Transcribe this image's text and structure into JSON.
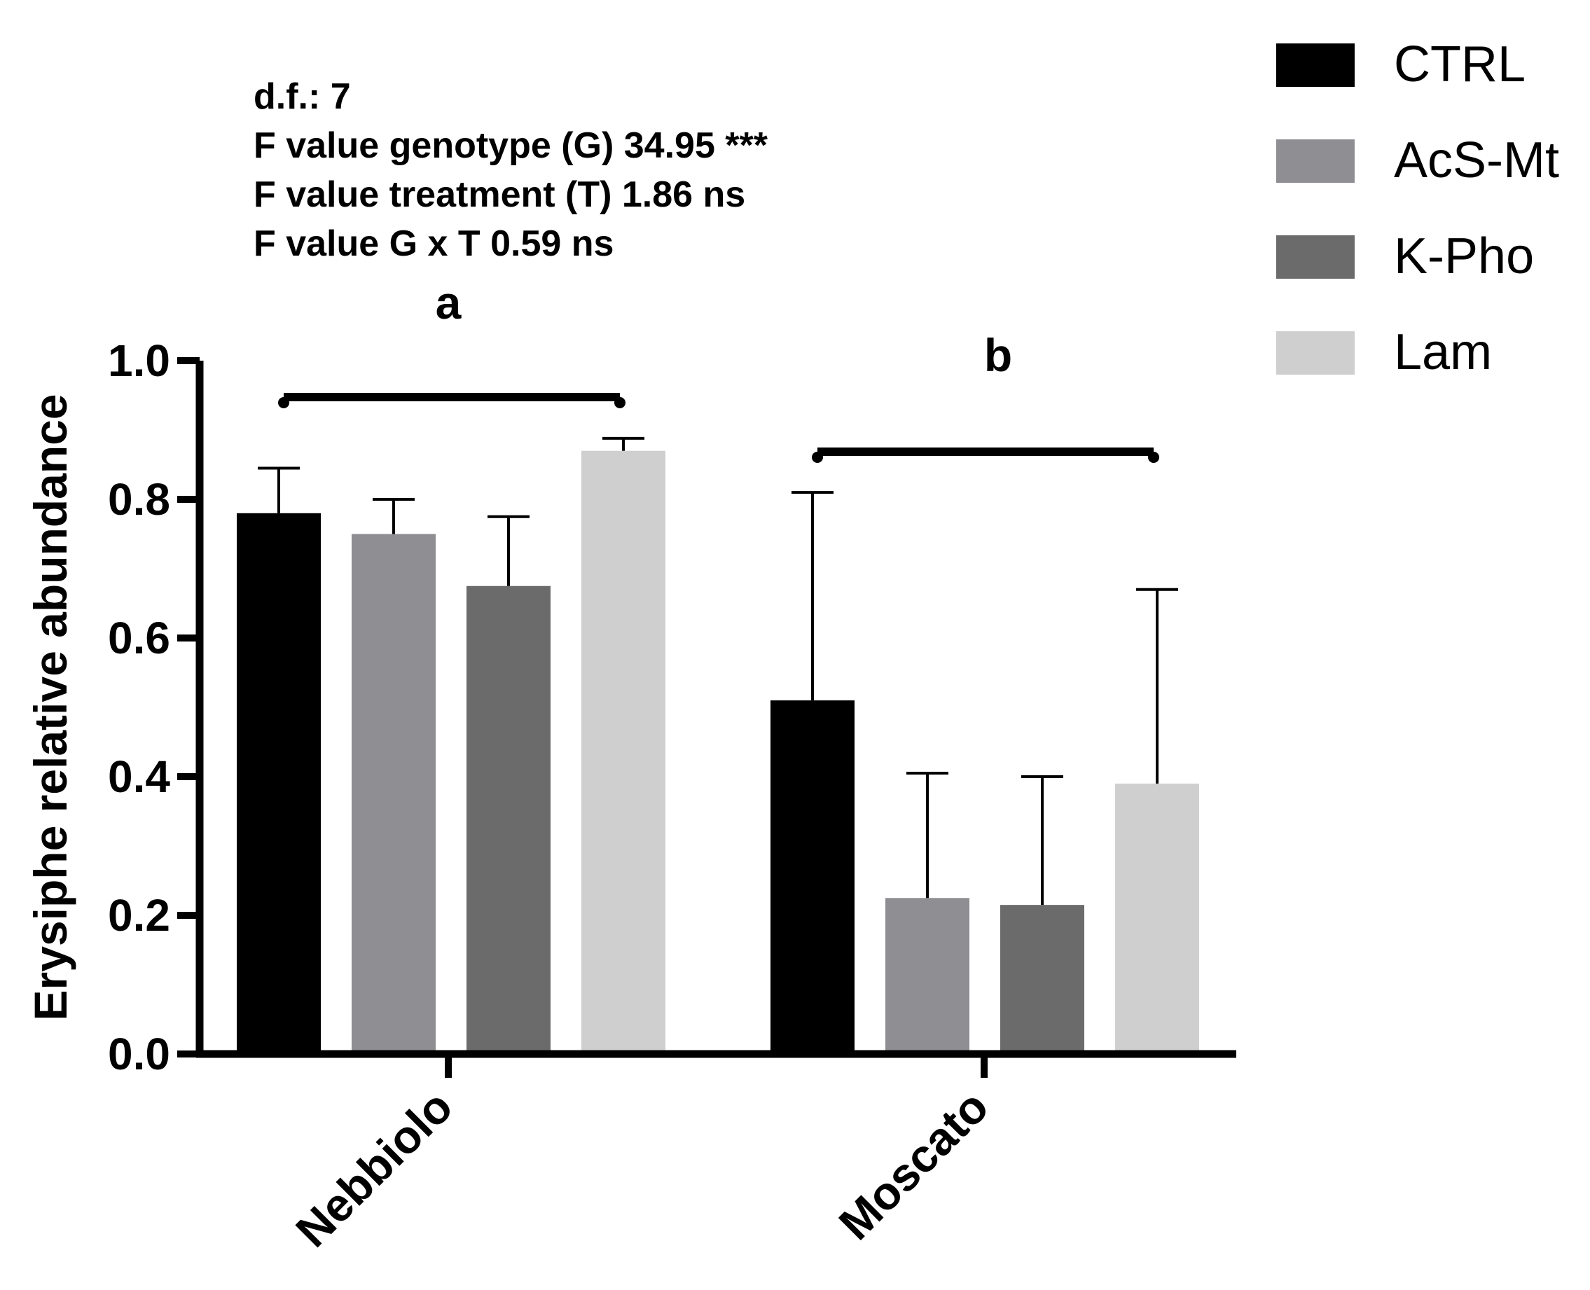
{
  "chart_data": {
    "type": "bar",
    "ylabel": "Erysiphe relative abundance",
    "xlabel": "",
    "ylim": [
      0,
      1.0
    ],
    "yticks": [
      {
        "value": 0.0,
        "label": "0.0"
      },
      {
        "value": 0.2,
        "label": "0.2"
      },
      {
        "value": 0.4,
        "label": "0.4"
      },
      {
        "value": 0.6,
        "label": "0.6"
      },
      {
        "value": 0.8,
        "label": "0.8"
      },
      {
        "value": 1.0,
        "label": "1.0"
      }
    ],
    "categories": [
      "Nebbiolo",
      "Moscato"
    ],
    "series": [
      {
        "name": "CTRL",
        "color": "#000000",
        "values": [
          0.78,
          0.51
        ],
        "errors": [
          0.065,
          0.3
        ]
      },
      {
        "name": "AcS-Mt",
        "color": "#8f8e93",
        "values": [
          0.75,
          0.225
        ],
        "errors": [
          0.05,
          0.18
        ]
      },
      {
        "name": "K-Pho",
        "color": "#6b6b6b",
        "values": [
          0.675,
          0.215
        ],
        "errors": [
          0.1,
          0.185
        ]
      },
      {
        "name": "Lam",
        "color": "#cfcfcf",
        "values": [
          0.87,
          0.39
        ],
        "errors": [
          0.018,
          0.28
        ]
      }
    ],
    "group_letters": [
      "a",
      "b"
    ],
    "stats": [
      "d.f.: 7",
      "F value genotype (G) 34.95 ***",
      "F value treatment (T) 1.86 ns",
      "F value G x T 0.59 ns"
    ],
    "legend": "top-right"
  }
}
